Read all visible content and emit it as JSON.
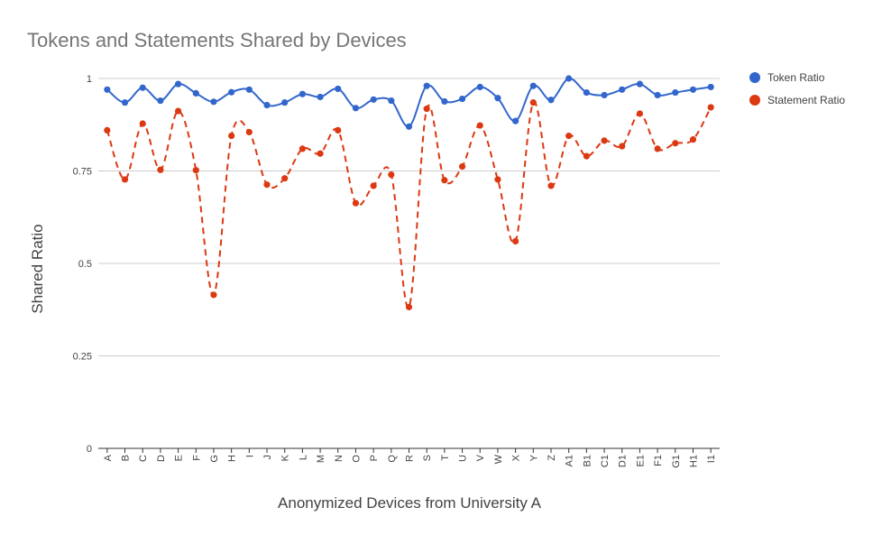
{
  "chart_data": {
    "type": "line",
    "title": "Tokens and Statements Shared by Devices",
    "xlabel": "Anonymized Devices from University A",
    "ylabel": "Shared Ratio",
    "ylim": [
      0,
      1
    ],
    "y_ticks": [
      0,
      0.25,
      0.5,
      0.75,
      1
    ],
    "y_tick_labels": [
      "0",
      "0.25",
      "0.5",
      "0.75",
      "1"
    ],
    "grid": true,
    "legend_position": "right",
    "categories": [
      "A",
      "B",
      "C",
      "D",
      "E",
      "F",
      "G",
      "H",
      "I",
      "J",
      "K",
      "L",
      "M",
      "N",
      "O",
      "P",
      "Q",
      "R",
      "S",
      "T",
      "U",
      "V",
      "W",
      "X",
      "Y",
      "Z",
      "A1",
      "B1",
      "C1",
      "D1",
      "E1",
      "F1",
      "G1",
      "H1",
      "I1"
    ],
    "series": [
      {
        "name": "Token Ratio",
        "color": "#3366cc",
        "line_style": "solid",
        "values": [
          0.97,
          0.935,
          0.975,
          0.94,
          0.985,
          0.96,
          0.937,
          0.963,
          0.97,
          0.928,
          0.935,
          0.958,
          0.95,
          0.972,
          0.92,
          0.943,
          0.94,
          0.87,
          0.98,
          0.938,
          0.945,
          0.977,
          0.947,
          0.885,
          0.98,
          0.942,
          1.0,
          0.962,
          0.955,
          0.97,
          0.985,
          0.955,
          0.962,
          0.97,
          0.977
        ]
      },
      {
        "name": "Statement Ratio",
        "color": "#dc3912",
        "line_style": "dashed",
        "values": [
          0.86,
          0.727,
          0.878,
          0.753,
          0.912,
          0.752,
          0.415,
          0.845,
          0.855,
          0.713,
          0.73,
          0.81,
          0.797,
          0.86,
          0.663,
          0.71,
          0.74,
          0.382,
          0.918,
          0.725,
          0.762,
          0.873,
          0.727,
          0.56,
          0.935,
          0.71,
          0.845,
          0.79,
          0.832,
          0.817,
          0.905,
          0.81,
          0.825,
          0.835,
          0.922
        ]
      }
    ]
  }
}
